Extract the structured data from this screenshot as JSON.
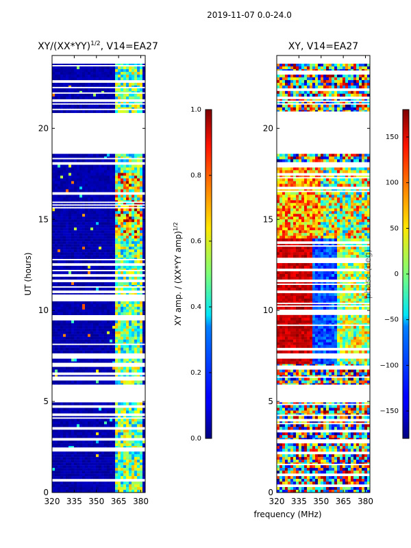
{
  "suptitle": "2019-11-07 0.0-24.0",
  "xlabel": "frequency (MHz)",
  "panels": [
    {
      "key": "amp",
      "title": "XY/(XX*YY)",
      "title_sup": "1/2",
      "title_tail": ", V14=EA27"
    },
    {
      "key": "phase",
      "title": "XY, V14=EA27",
      "title_sup": "",
      "title_tail": ""
    }
  ],
  "chart_data": [
    {
      "type": "heatmap",
      "title": "XY/(XX*YY)^1/2, V14=EA27",
      "xlabel": "frequency (MHz)",
      "ylabel": "UT (hours)",
      "xlim": [
        320,
        383
      ],
      "ylim": [
        0,
        24
      ],
      "xticks": [
        320,
        335,
        350,
        365,
        380
      ],
      "yticks": [
        0,
        5,
        10,
        15,
        20
      ],
      "colorbar": {
        "label": "XY amp. / (XX*YY amp)^1/2",
        "range": [
          0.0,
          1.0
        ],
        "ticks": [
          "0.0",
          "0.2",
          "0.4",
          "0.6",
          "0.8",
          "1.0"
        ]
      }
    },
    {
      "type": "heatmap",
      "title": "XY, V14=EA27",
      "xlabel": "frequency (MHz)",
      "ylabel": "",
      "xlim": [
        320,
        383
      ],
      "ylim": [
        0,
        24
      ],
      "xticks": [
        320,
        335,
        350,
        365,
        380
      ],
      "yticks": [
        0,
        5,
        10,
        15,
        20
      ],
      "colorbar": {
        "label": "phase (deg)",
        "range": [
          -180,
          180
        ],
        "ticks": [
          "−150",
          "−100",
          "−50",
          "0",
          "50",
          "100",
          "150"
        ]
      }
    }
  ],
  "ylabel": "UT (hours)",
  "cb1_label": "XY amp. / (XX*YY amp)",
  "cb1_sup": "1/2",
  "cb2_label": "phase (deg)"
}
